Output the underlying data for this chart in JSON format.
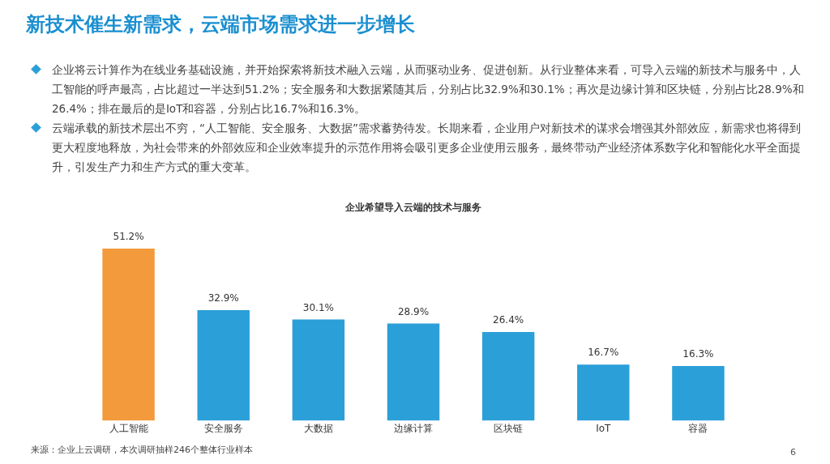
{
  "chart_data": {
    "type": "bar",
    "title": "新技术催生新需求，云端市场需求进一步增长",
    "subtitle": "企业希望导入云端的技术与服务",
    "categories": [
      "人工智能",
      "安全服务",
      "大数据",
      "边缘计算",
      "区块链",
      "IoT",
      "容器"
    ],
    "values": [
      51.2,
      32.9,
      30.1,
      28.9,
      26.4,
      16.7,
      16.3
    ],
    "value_labels": [
      "51.2%",
      "32.9%",
      "30.1%",
      "28.9%",
      "26.4%",
      "16.7%",
      "16.3%"
    ],
    "colors": [
      "#f39a3c",
      "#2b9fd8",
      "#2b9fd8",
      "#2b9fd8",
      "#2b9fd8",
      "#2b9fd8",
      "#2b9fd8"
    ],
    "annotations": [
      "企业将云计算作为在线业务基础设施，并开始探索将新技术融入云端，从而驱动业务、促进创新。从行业整体来看，可导入云端的新技术与服务中，人工智能的呼声最高，占比超过一半达到51.2%；安全服务和大数据紧随其后，分别占比32.9%和30.1%；再次是边缘计算和区块链，分别占比28.9%和26.4%；排在最后的是IoT和容器，分别占比16.7%和16.3%。",
      "云端承载的新技术层出不穷，“人工智能、安全服务、大数据”需求蓄势待发。长期来看，企业用户对新技术的谋求会增强其外部效应，新需求也将得到更大程度地释放，为社会带来的外部效应和企业效率提升的示范作用将会吸引更多企业使用云服务，最终带动产业经济体系数字化和智能化水平全面提升，引发生产力和生产方式的重大变革。",
      "来源：企业上云调研，本次调研抽样246个整体行业样本",
      "6"
    ],
    "legend": false,
    "grid": false
  }
}
